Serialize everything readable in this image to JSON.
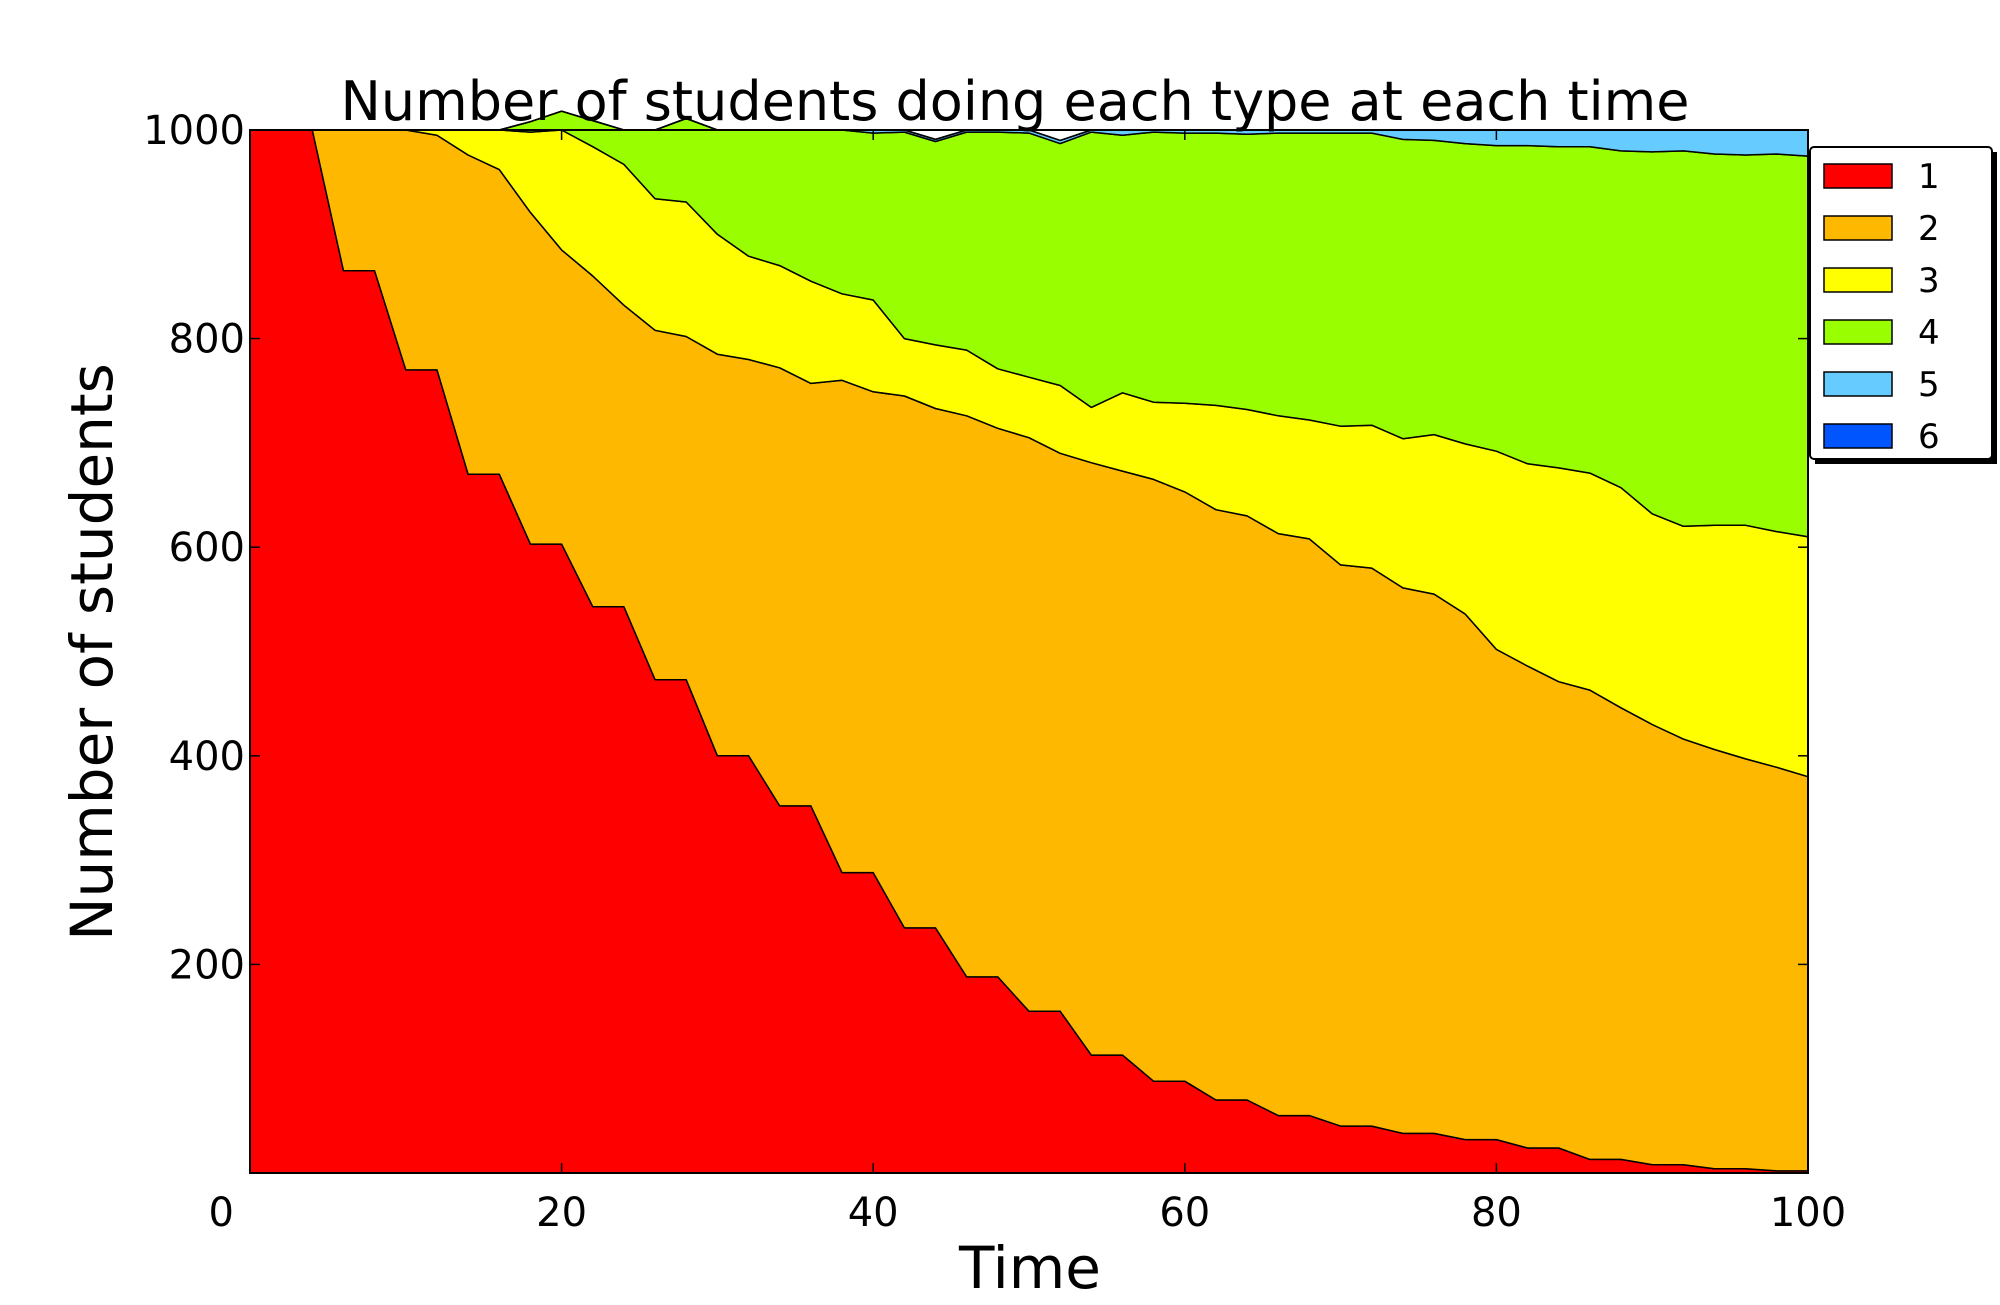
{
  "chart_data": {
    "type": "area",
    "stacked": true,
    "title": "Number of students doing each type at each time",
    "xlabel": "Time",
    "ylabel": "Number of students",
    "xlim": [
      0,
      100
    ],
    "ylim": [
      0,
      1000
    ],
    "xticks": [
      0,
      20,
      40,
      60,
      80,
      100
    ],
    "yticks": [
      0,
      200,
      400,
      600,
      800,
      1000
    ],
    "grid": false,
    "legend_position": "outside-top-right",
    "x": [
      0,
      2,
      4,
      6,
      8,
      10,
      12,
      14,
      16,
      18,
      20,
      22,
      24,
      26,
      28,
      30,
      32,
      34,
      36,
      38,
      40,
      42,
      44,
      46,
      48,
      50,
      52,
      54,
      56,
      58,
      60,
      62,
      64,
      66,
      68,
      70,
      72,
      74,
      76,
      78,
      80,
      82,
      84,
      86,
      88,
      90,
      92,
      94,
      96,
      98,
      100
    ],
    "series": [
      {
        "name": "1",
        "color": "#ff0000",
        "values": [
          1000,
          1000,
          1000,
          865,
          865,
          770,
          770,
          670,
          670,
          603,
          603,
          543,
          543,
          473,
          473,
          400,
          400,
          352,
          352,
          288,
          288,
          235,
          235,
          188,
          188,
          155,
          155,
          113,
          113,
          88,
          88,
          70,
          70,
          55,
          55,
          45,
          45,
          38,
          38,
          32,
          32,
          24,
          24,
          13,
          13,
          8,
          8,
          4,
          4,
          2,
          2
        ]
      },
      {
        "name": "2",
        "color": "#ffb800",
        "values": [
          0,
          0,
          0,
          135,
          135,
          230,
          225,
          306,
          292,
          318,
          282,
          317,
          289,
          335,
          329,
          385,
          380,
          420,
          405,
          472,
          461,
          510,
          498,
          538,
          526,
          550,
          535,
          568,
          560,
          577,
          565,
          566,
          560,
          558,
          553,
          538,
          535,
          523,
          517,
          504,
          470,
          462,
          447,
          450,
          433,
          422,
          408,
          402,
          393,
          387,
          378
        ]
      },
      {
        "name": "3",
        "color": "#ffff00",
        "values": [
          0,
          0,
          0,
          0,
          0,
          0,
          5,
          24,
          38,
          77,
          115,
          124,
          135,
          126,
          129,
          115,
          99,
          98,
          98,
          83,
          88,
          55,
          61,
          63,
          57,
          58,
          65,
          53,
          75,
          74,
          85,
          100,
          102,
          113,
          114,
          133,
          137,
          143,
          153,
          163,
          190,
          194,
          205,
          208,
          211,
          202,
          204,
          215,
          224,
          226,
          230
        ]
      },
      {
        "name": "4",
        "color": "#99ff00",
        "values": [
          0,
          0,
          0,
          0,
          0,
          0,
          0,
          0,
          0,
          10,
          18,
          25,
          33,
          66,
          80,
          100,
          121,
          130,
          145,
          157,
          160,
          198,
          195,
          209,
          227,
          234,
          232,
          264,
          247,
          259,
          259,
          261,
          264,
          271,
          275,
          281,
          280,
          287,
          282,
          288,
          293,
          305,
          308,
          313,
          323,
          347,
          360,
          356,
          355,
          362,
          365
        ]
      },
      {
        "name": "5",
        "color": "#66ccff",
        "values": [
          0,
          0,
          0,
          0,
          0,
          0,
          0,
          0,
          0,
          0,
          0,
          0,
          0,
          0,
          0,
          0,
          0,
          0,
          0,
          0,
          3,
          2,
          2,
          2,
          2,
          3,
          3,
          2,
          5,
          2,
          3,
          3,
          4,
          3,
          3,
          3,
          3,
          9,
          10,
          13,
          15,
          15,
          16,
          16,
          20,
          21,
          20,
          23,
          24,
          23,
          25
        ]
      },
      {
        "name": "6",
        "color": "#0055ff",
        "values": [
          0,
          0,
          0,
          0,
          0,
          0,
          0,
          0,
          0,
          0,
          0,
          0,
          0,
          0,
          0,
          0,
          0,
          0,
          0,
          0,
          0,
          0,
          0,
          0,
          0,
          0,
          0,
          0,
          0,
          0,
          0,
          0,
          0,
          0,
          0,
          0,
          0,
          0,
          0,
          0,
          0,
          0,
          0,
          0,
          0,
          0,
          0,
          0,
          0,
          0,
          0
        ]
      }
    ]
  }
}
